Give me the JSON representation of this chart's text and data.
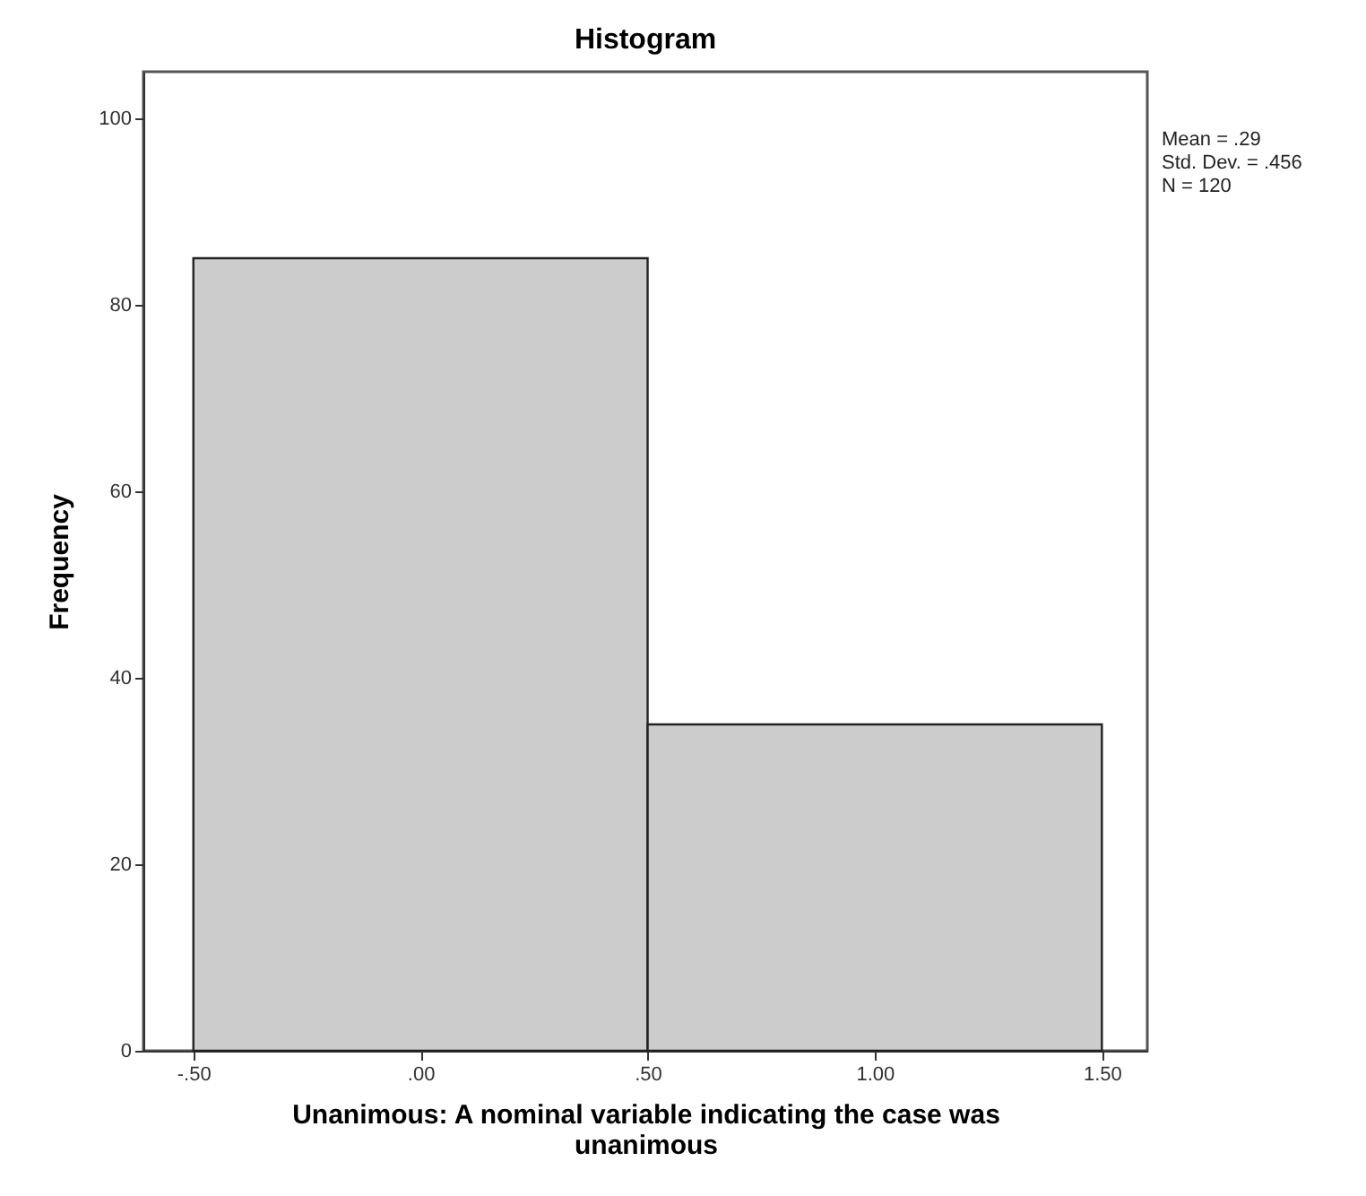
{
  "chart_data": {
    "type": "histogram",
    "title": "Histogram",
    "xlabel": "Unanimous: A nominal variable indicating the case was unanimous",
    "ylabel": "Frequency",
    "bins": [
      -0.5,
      0.5,
      1.5
    ],
    "values": [
      85,
      35
    ],
    "color": "#cccccc",
    "xlim": [
      -0.61,
      1.6
    ],
    "xticks": [
      {
        "value": -0.5,
        "label": "-.50"
      },
      {
        "value": 0,
        "label": ".00"
      },
      {
        "value": 0.5,
        "label": ".50"
      },
      {
        "value": 1,
        "label": "1.00"
      },
      {
        "value": 1.5,
        "label": "1.50"
      }
    ],
    "ylim": [
      0,
      105
    ],
    "yticks": [
      0,
      20,
      40,
      60,
      80,
      100
    ],
    "grid": false,
    "annotations": [
      "Mean = .29",
      "Std. Dev. = .456",
      "N = 120"
    ]
  }
}
